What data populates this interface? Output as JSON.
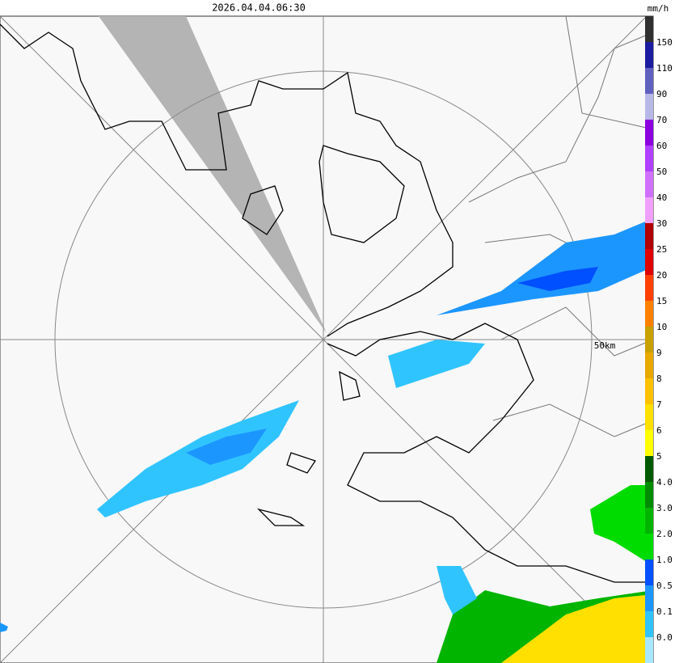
{
  "header": {
    "timestamp": "2026.04.04.06:30",
    "unit": "mm/h"
  },
  "map": {
    "range_label": "50km"
  },
  "legend": {
    "labels": [
      "0.0",
      "0.1",
      "0.5",
      "1.0",
      "2.0",
      "3.0",
      "4.0",
      "5",
      "6",
      "7",
      "8",
      "9",
      "10",
      "15",
      "20",
      "25",
      "30",
      "40",
      "50",
      "60",
      "70",
      "90",
      "110",
      "150"
    ],
    "colors": [
      "#a8e8ff",
      "#30c4ff",
      "#1c96ff",
      "#0050ff",
      "#00dc00",
      "#00b400",
      "#008c00",
      "#005a00",
      "#ffff00",
      "#ffe000",
      "#ffc000",
      "#e8a800",
      "#c8a000",
      "#ff8000",
      "#ff4000",
      "#e00000",
      "#b00000",
      "#f0a0ff",
      "#d070ff",
      "#b040ff",
      "#8c00e0",
      "#b8b8e8",
      "#6060c0",
      "#1c1ca0",
      "#303030"
    ]
  }
}
